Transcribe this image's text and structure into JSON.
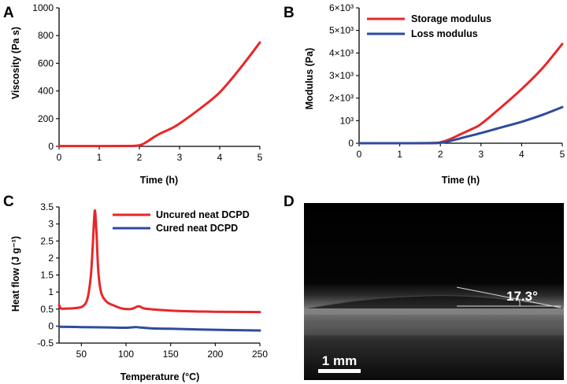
{
  "colors": {
    "red": "#e8262a",
    "blue": "#2e4b9e"
  },
  "chart_data": [
    {
      "panel": "A",
      "type": "line",
      "title": "",
      "xlabel": "Time (h)",
      "ylabel": "Viscosity (Pa s)",
      "xlim": [
        0,
        5
      ],
      "ylim": [
        0,
        1000
      ],
      "xticks": [
        0,
        1,
        2,
        3,
        4,
        5
      ],
      "xtick_labels": [
        "0",
        "1",
        "2",
        "3",
        "4",
        "5"
      ],
      "yticks": [
        0,
        200,
        400,
        600,
        800,
        1000
      ],
      "ytick_labels": [
        "0",
        "200",
        "400",
        "600",
        "800",
        "1000"
      ],
      "series": [
        {
          "name": "Viscosity",
          "color": "#e8262a",
          "x": [
            0,
            1,
            1.8,
            2.0,
            2.1,
            2.2,
            2.3,
            2.5,
            2.8,
            3.0,
            3.5,
            4.0,
            4.5,
            5.0
          ],
          "y": [
            2,
            2,
            3,
            8,
            18,
            35,
            55,
            90,
            130,
            165,
            270,
            390,
            560,
            750
          ]
        }
      ]
    },
    {
      "panel": "B",
      "type": "line",
      "title": "",
      "xlabel": "Time (h)",
      "ylabel": "Modulus (Pa)",
      "xlim": [
        0,
        5
      ],
      "ylim": [
        0,
        6000
      ],
      "xticks": [
        0,
        1,
        2,
        3,
        4,
        5
      ],
      "xtick_labels": [
        "0",
        "1",
        "2",
        "3",
        "4",
        "5"
      ],
      "yticks": [
        0,
        1000,
        2000,
        3000,
        4000,
        5000,
        6000
      ],
      "ytick_labels": [
        "0",
        "10³",
        "2×10³",
        "3×10³",
        "4×10³",
        "5×10³",
        "6×10³"
      ],
      "legend": [
        "Storage modulus",
        "Loss modulus"
      ],
      "series": [
        {
          "name": "Storage modulus",
          "color": "#e8262a",
          "x": [
            0,
            1,
            1.8,
            2.0,
            2.2,
            2.5,
            2.8,
            3.0,
            3.5,
            4.0,
            4.5,
            5.0
          ],
          "y": [
            0,
            0,
            10,
            40,
            150,
            400,
            650,
            850,
            1600,
            2400,
            3300,
            4400
          ]
        },
        {
          "name": "Loss modulus",
          "color": "#2e4b9e",
          "x": [
            0,
            1,
            1.8,
            2.0,
            2.2,
            2.5,
            3.0,
            3.5,
            4.0,
            4.5,
            5.0
          ],
          "y": [
            0,
            0,
            5,
            20,
            80,
            220,
            450,
            700,
            950,
            1250,
            1600
          ]
        }
      ]
    },
    {
      "panel": "C",
      "type": "line",
      "title": "",
      "xlabel": "Temperature (°C)",
      "ylabel": "Heat flow (J g⁻¹)",
      "xlim": [
        25,
        250
      ],
      "ylim": [
        -0.5,
        3.5
      ],
      "xticks": [
        50,
        100,
        150,
        200,
        250
      ],
      "xtick_labels": [
        "50",
        "100",
        "150",
        "200",
        "250"
      ],
      "yticks": [
        -0.5,
        0,
        0.5,
        1,
        1.5,
        2,
        2.5,
        3,
        3.5
      ],
      "ytick_labels": [
        "-0.5",
        "0",
        "0.5",
        "1",
        "1.5",
        "2",
        "2.5",
        "3",
        "3.5"
      ],
      "legend": [
        "Uncured neat DCPD",
        "Cured neat DCPD"
      ],
      "series": [
        {
          "name": "Uncured neat DCPD",
          "color": "#e8262a",
          "x": [
            25,
            27,
            30,
            40,
            50,
            55,
            58,
            61,
            63,
            64.5,
            65.5,
            67,
            69,
            72,
            76,
            80,
            85,
            95,
            105,
            110,
            113,
            116,
            120,
            130,
            140,
            160,
            200,
            250
          ],
          "y": [
            0.62,
            0.52,
            0.51,
            0.52,
            0.56,
            0.68,
            0.95,
            1.6,
            2.5,
            3.25,
            3.35,
            2.7,
            1.6,
            1.0,
            0.78,
            0.68,
            0.62,
            0.52,
            0.5,
            0.54,
            0.58,
            0.57,
            0.52,
            0.49,
            0.47,
            0.44,
            0.42,
            0.41
          ]
        },
        {
          "name": "Cured neat DCPD",
          "color": "#2e4b9e",
          "x": [
            25,
            50,
            80,
            100,
            110,
            115,
            130,
            150,
            200,
            250
          ],
          "y": [
            -0.02,
            -0.03,
            -0.04,
            -0.05,
            -0.03,
            -0.04,
            -0.07,
            -0.08,
            -0.11,
            -0.13
          ]
        }
      ]
    }
  ],
  "panels": {
    "a": {
      "letter": "A"
    },
    "b": {
      "letter": "B"
    },
    "c": {
      "letter": "C"
    },
    "d": {
      "letter": "D",
      "angle_label": "17.3°",
      "scale_label": "1 mm"
    }
  }
}
